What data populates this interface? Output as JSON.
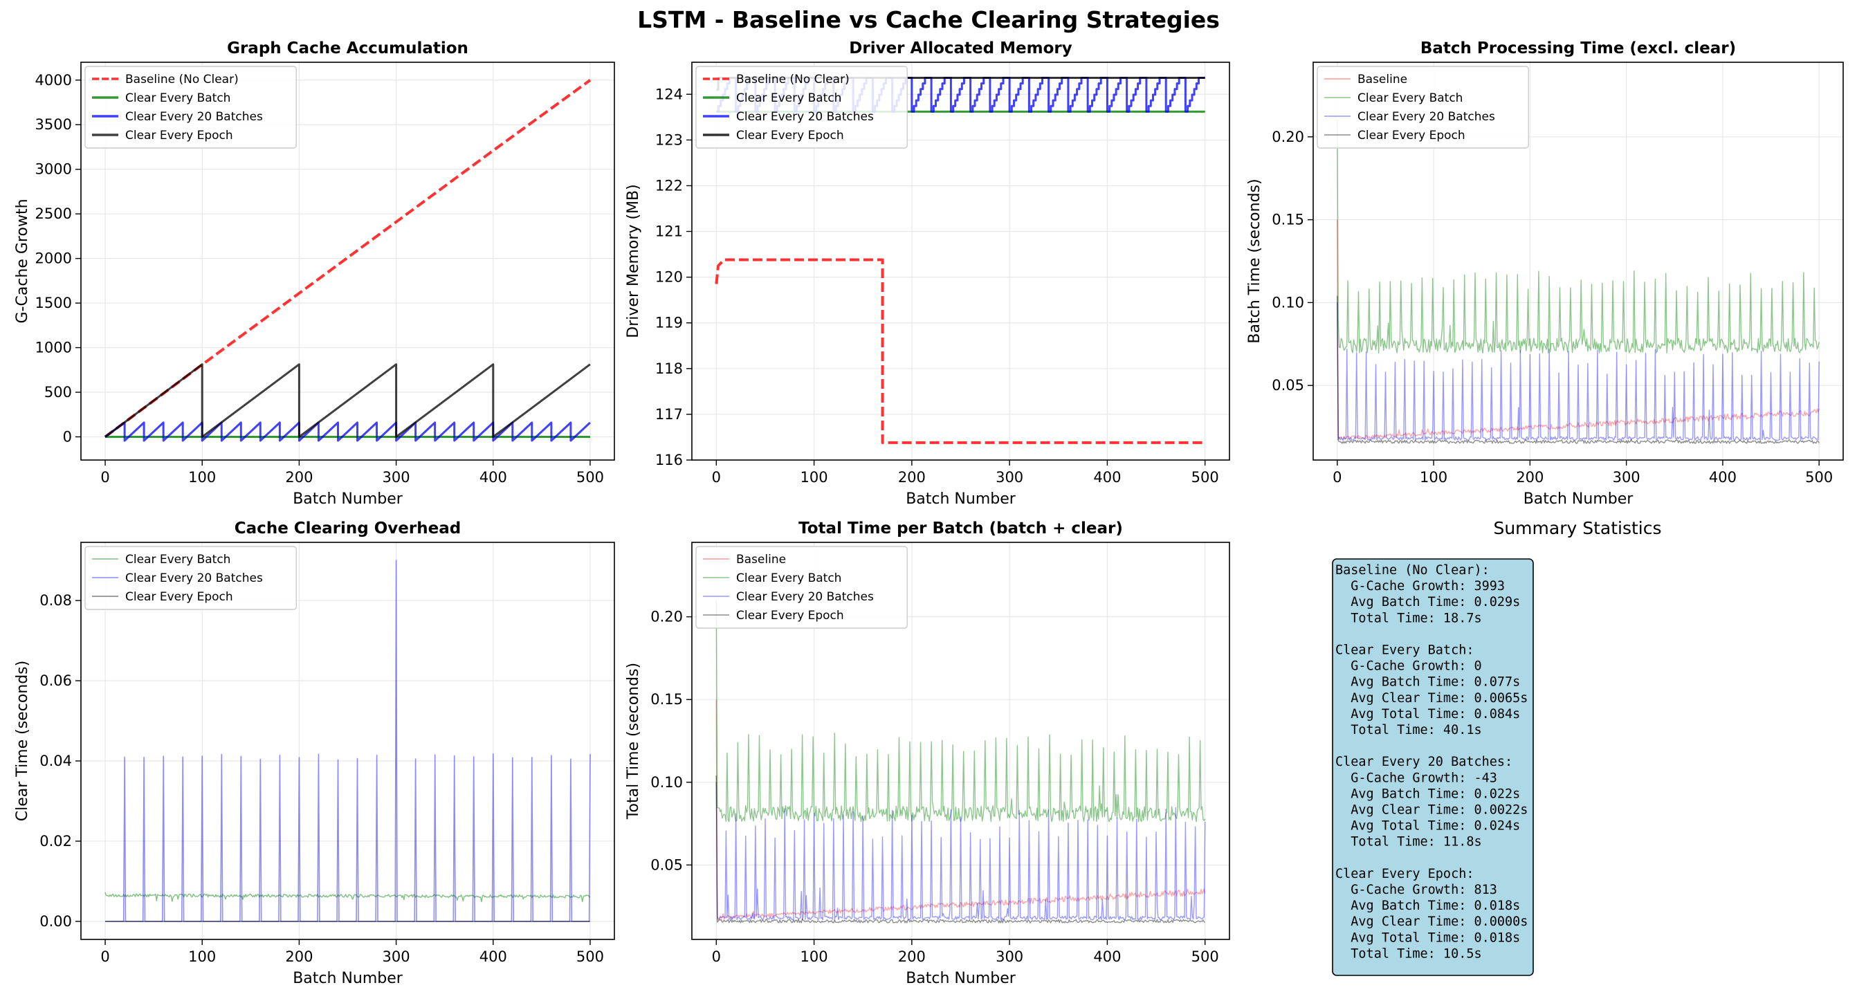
{
  "figure": {
    "title": "LSTM - Baseline vs Cache Clearing Strategies"
  },
  "colors": {
    "baseline": "#ff0000",
    "every_batch": "#008000",
    "every_20": "#0000ff",
    "every_epoch": "#000000",
    "grid": "#e8e8e8",
    "summary_bg": "#add8e6"
  },
  "chart_data": [
    {
      "id": "cache",
      "type": "line",
      "title": "Graph Cache Accumulation",
      "xlabel": "Batch Number",
      "ylabel": "G-Cache Growth",
      "xlim": [
        -25,
        525
      ],
      "ylim": [
        -260,
        4200
      ],
      "xticks": [
        "0",
        "100",
        "200",
        "300",
        "400",
        "500"
      ],
      "yticks": [
        "0",
        "500",
        "1000",
        "1500",
        "2000",
        "2500",
        "3000",
        "3500",
        "4000"
      ],
      "grid": true,
      "legend": "top-left",
      "series": [
        {
          "name": "Baseline (No Clear)",
          "style": "dashed",
          "color": "#ff0000",
          "opacity": 0.8,
          "width": 4,
          "x": [
            0,
            100,
            200,
            300,
            400,
            500
          ],
          "y": [
            0,
            810,
            1610,
            2410,
            3210,
            4000
          ]
        },
        {
          "name": "Clear Every Batch",
          "style": "solid",
          "color": "#008000",
          "opacity": 0.8,
          "width": 3,
          "x": [
            0,
            500
          ],
          "y": [
            0,
            0
          ]
        },
        {
          "name": "Clear Every 20 Batches",
          "style": "sawtooth",
          "color": "#0000ff",
          "opacity": 0.75,
          "width": 3,
          "period": 20,
          "peak": 160,
          "trough": -43,
          "x_range": [
            0,
            500
          ]
        },
        {
          "name": "Clear Every Epoch",
          "style": "sawtooth",
          "color": "#000000",
          "opacity": 0.75,
          "width": 3,
          "period": 100,
          "peak": 813,
          "trough": 0,
          "x_range": [
            0,
            500
          ]
        }
      ]
    },
    {
      "id": "memory",
      "type": "line",
      "title": "Driver Allocated Memory",
      "xlabel": "Batch Number",
      "ylabel": "Driver Memory (MB)",
      "xlim": [
        -25,
        525
      ],
      "ylim": [
        116.0,
        124.7
      ],
      "xticks": [
        "0",
        "100",
        "200",
        "300",
        "400",
        "500"
      ],
      "yticks": [
        "116",
        "117",
        "118",
        "119",
        "120",
        "121",
        "122",
        "123",
        "124"
      ],
      "grid": true,
      "legend": "top-left",
      "series": [
        {
          "name": "Baseline (No Clear)",
          "style": "dashed",
          "color": "#ff0000",
          "opacity": 0.8,
          "width": 4,
          "x": [
            0,
            2,
            8,
            170,
            170,
            500
          ],
          "y": [
            119.85,
            120.25,
            120.38,
            120.38,
            116.38,
            116.38
          ]
        },
        {
          "name": "Clear Every Batch",
          "style": "solid",
          "color": "#008000",
          "opacity": 0.8,
          "width": 3,
          "x": [
            0,
            500
          ],
          "y": [
            123.62,
            123.62
          ]
        },
        {
          "name": "Clear Every 20 Batches",
          "style": "staircase",
          "color": "#0000ff",
          "opacity": 0.75,
          "width": 3,
          "period": 20,
          "low": 123.62,
          "high": 124.36,
          "x_range": [
            0,
            500
          ]
        },
        {
          "name": "Clear Every Epoch",
          "style": "steps",
          "color": "#000000",
          "opacity": 0.8,
          "width": 3,
          "x": [
            0,
            2,
            500
          ],
          "y": [
            124.1,
            124.36,
            124.36
          ]
        }
      ]
    },
    {
      "id": "batchtime",
      "type": "line",
      "title": "Batch Processing Time (excl. clear)",
      "xlabel": "Batch Number",
      "ylabel": "Batch Time (seconds)",
      "xlim": [
        -25,
        525
      ],
      "ylim": [
        0.005,
        0.245
      ],
      "xticks": [
        "0",
        "100",
        "200",
        "300",
        "400",
        "500"
      ],
      "yticks": [
        "0.05",
        "0.10",
        "0.15",
        "0.20"
      ],
      "grid": true,
      "legend": "top-left",
      "series": [
        {
          "name": "Baseline",
          "style": "noisy",
          "color": "#ff0000",
          "opacity": 0.35,
          "width": 1.4,
          "base_start": 0.018,
          "base_end": 0.034,
          "first": 0.15,
          "spike_every": 0,
          "spike_height": 0.03
        },
        {
          "name": "Clear Every Batch",
          "style": "noisy",
          "color": "#008000",
          "opacity": 0.45,
          "width": 1.4,
          "base_start": 0.074,
          "base_end": 0.074,
          "first": 0.21,
          "spike_every": 11,
          "spike_height": 0.12
        },
        {
          "name": "Clear Every 20 Batches",
          "style": "noisy",
          "color": "#0000ff",
          "opacity": 0.4,
          "width": 1.4,
          "base_start": 0.018,
          "base_end": 0.018,
          "first": 0.1,
          "spike_every": 10,
          "spike_height": 0.072
        },
        {
          "name": "Clear Every Epoch",
          "style": "noisy",
          "color": "#000000",
          "opacity": 0.45,
          "width": 1.4,
          "base_start": 0.016,
          "base_end": 0.016,
          "first": 0.104,
          "spike_every": 0,
          "spike_height": 0.02
        }
      ]
    },
    {
      "id": "clear",
      "type": "line",
      "title": "Cache Clearing Overhead",
      "xlabel": "Batch Number",
      "ylabel": "Clear Time (seconds)",
      "xlim": [
        -25,
        525
      ],
      "ylim": [
        -0.0045,
        0.0945
      ],
      "xticks": [
        "0",
        "100",
        "200",
        "300",
        "400",
        "500"
      ],
      "yticks": [
        "0.00",
        "0.02",
        "0.04",
        "0.06",
        "0.08"
      ],
      "grid": true,
      "legend": "top-left",
      "series": [
        {
          "name": "Clear Every Batch",
          "style": "noisy",
          "color": "#008000",
          "opacity": 0.5,
          "width": 1.4,
          "base_start": 0.0065,
          "base_end": 0.0062,
          "first": 0.0072,
          "spike_every": 0,
          "spike_height": 0.002
        },
        {
          "name": "Clear Every 20 Batches",
          "style": "spikes",
          "color": "#0000ff",
          "opacity": 0.45,
          "width": 1.6,
          "period": 20,
          "height": 0.041,
          "special_x": 300,
          "special_height": 0.09
        },
        {
          "name": "Clear Every Epoch",
          "style": "solid",
          "color": "#000000",
          "opacity": 0.5,
          "width": 1.6,
          "x": [
            0,
            500
          ],
          "y": [
            0,
            0
          ]
        }
      ]
    },
    {
      "id": "total",
      "type": "line",
      "title": "Total Time per Batch (batch + clear)",
      "xlabel": "Batch Number",
      "ylabel": "Total Time (seconds)",
      "xlim": [
        -25,
        525
      ],
      "ylim": [
        0.005,
        0.245
      ],
      "xticks": [
        "0",
        "100",
        "200",
        "300",
        "400",
        "500"
      ],
      "yticks": [
        "0.05",
        "0.10",
        "0.15",
        "0.20"
      ],
      "grid": true,
      "legend": "top-left",
      "series": [
        {
          "name": "Baseline",
          "style": "noisy",
          "color": "#ff0000",
          "opacity": 0.35,
          "width": 1.4,
          "base_start": 0.018,
          "base_end": 0.034,
          "first": 0.15,
          "spike_every": 0,
          "spike_height": 0.03
        },
        {
          "name": "Clear Every Batch",
          "style": "noisy",
          "color": "#008000",
          "opacity": 0.45,
          "width": 1.4,
          "base_start": 0.081,
          "base_end": 0.081,
          "first": 0.21,
          "spike_every": 11,
          "spike_height": 0.13
        },
        {
          "name": "Clear Every 20 Batches",
          "style": "noisy",
          "color": "#0000ff",
          "opacity": 0.4,
          "width": 1.4,
          "base_start": 0.018,
          "base_end": 0.018,
          "first": 0.1,
          "spike_every": 10,
          "spike_height": 0.085
        },
        {
          "name": "Clear Every Epoch",
          "style": "noisy",
          "color": "#000000",
          "opacity": 0.45,
          "width": 1.4,
          "base_start": 0.016,
          "base_end": 0.016,
          "first": 0.104,
          "spike_every": 0,
          "spike_height": 0.02
        }
      ]
    }
  ],
  "summary": {
    "title": "Summary Statistics",
    "lines": [
      "Baseline (No Clear):",
      "  G-Cache Growth: 3993",
      "  Avg Batch Time: 0.029s",
      "  Total Time: 18.7s",
      "",
      "Clear Every Batch:",
      "  G-Cache Growth: 0",
      "  Avg Batch Time: 0.077s",
      "  Avg Clear Time: 0.0065s",
      "  Avg Total Time: 0.084s",
      "  Total Time: 40.1s",
      "",
      "Clear Every 20 Batches:",
      "  G-Cache Growth: -43",
      "  Avg Batch Time: 0.022s",
      "  Avg Clear Time: 0.0022s",
      "  Avg Total Time: 0.024s",
      "  Total Time: 11.8s",
      "",
      "Clear Every Epoch:",
      "  G-Cache Growth: 813",
      "  Avg Batch Time: 0.018s",
      "  Avg Clear Time: 0.0000s",
      "  Avg Total Time: 0.018s",
      "  Total Time: 10.5s"
    ]
  }
}
